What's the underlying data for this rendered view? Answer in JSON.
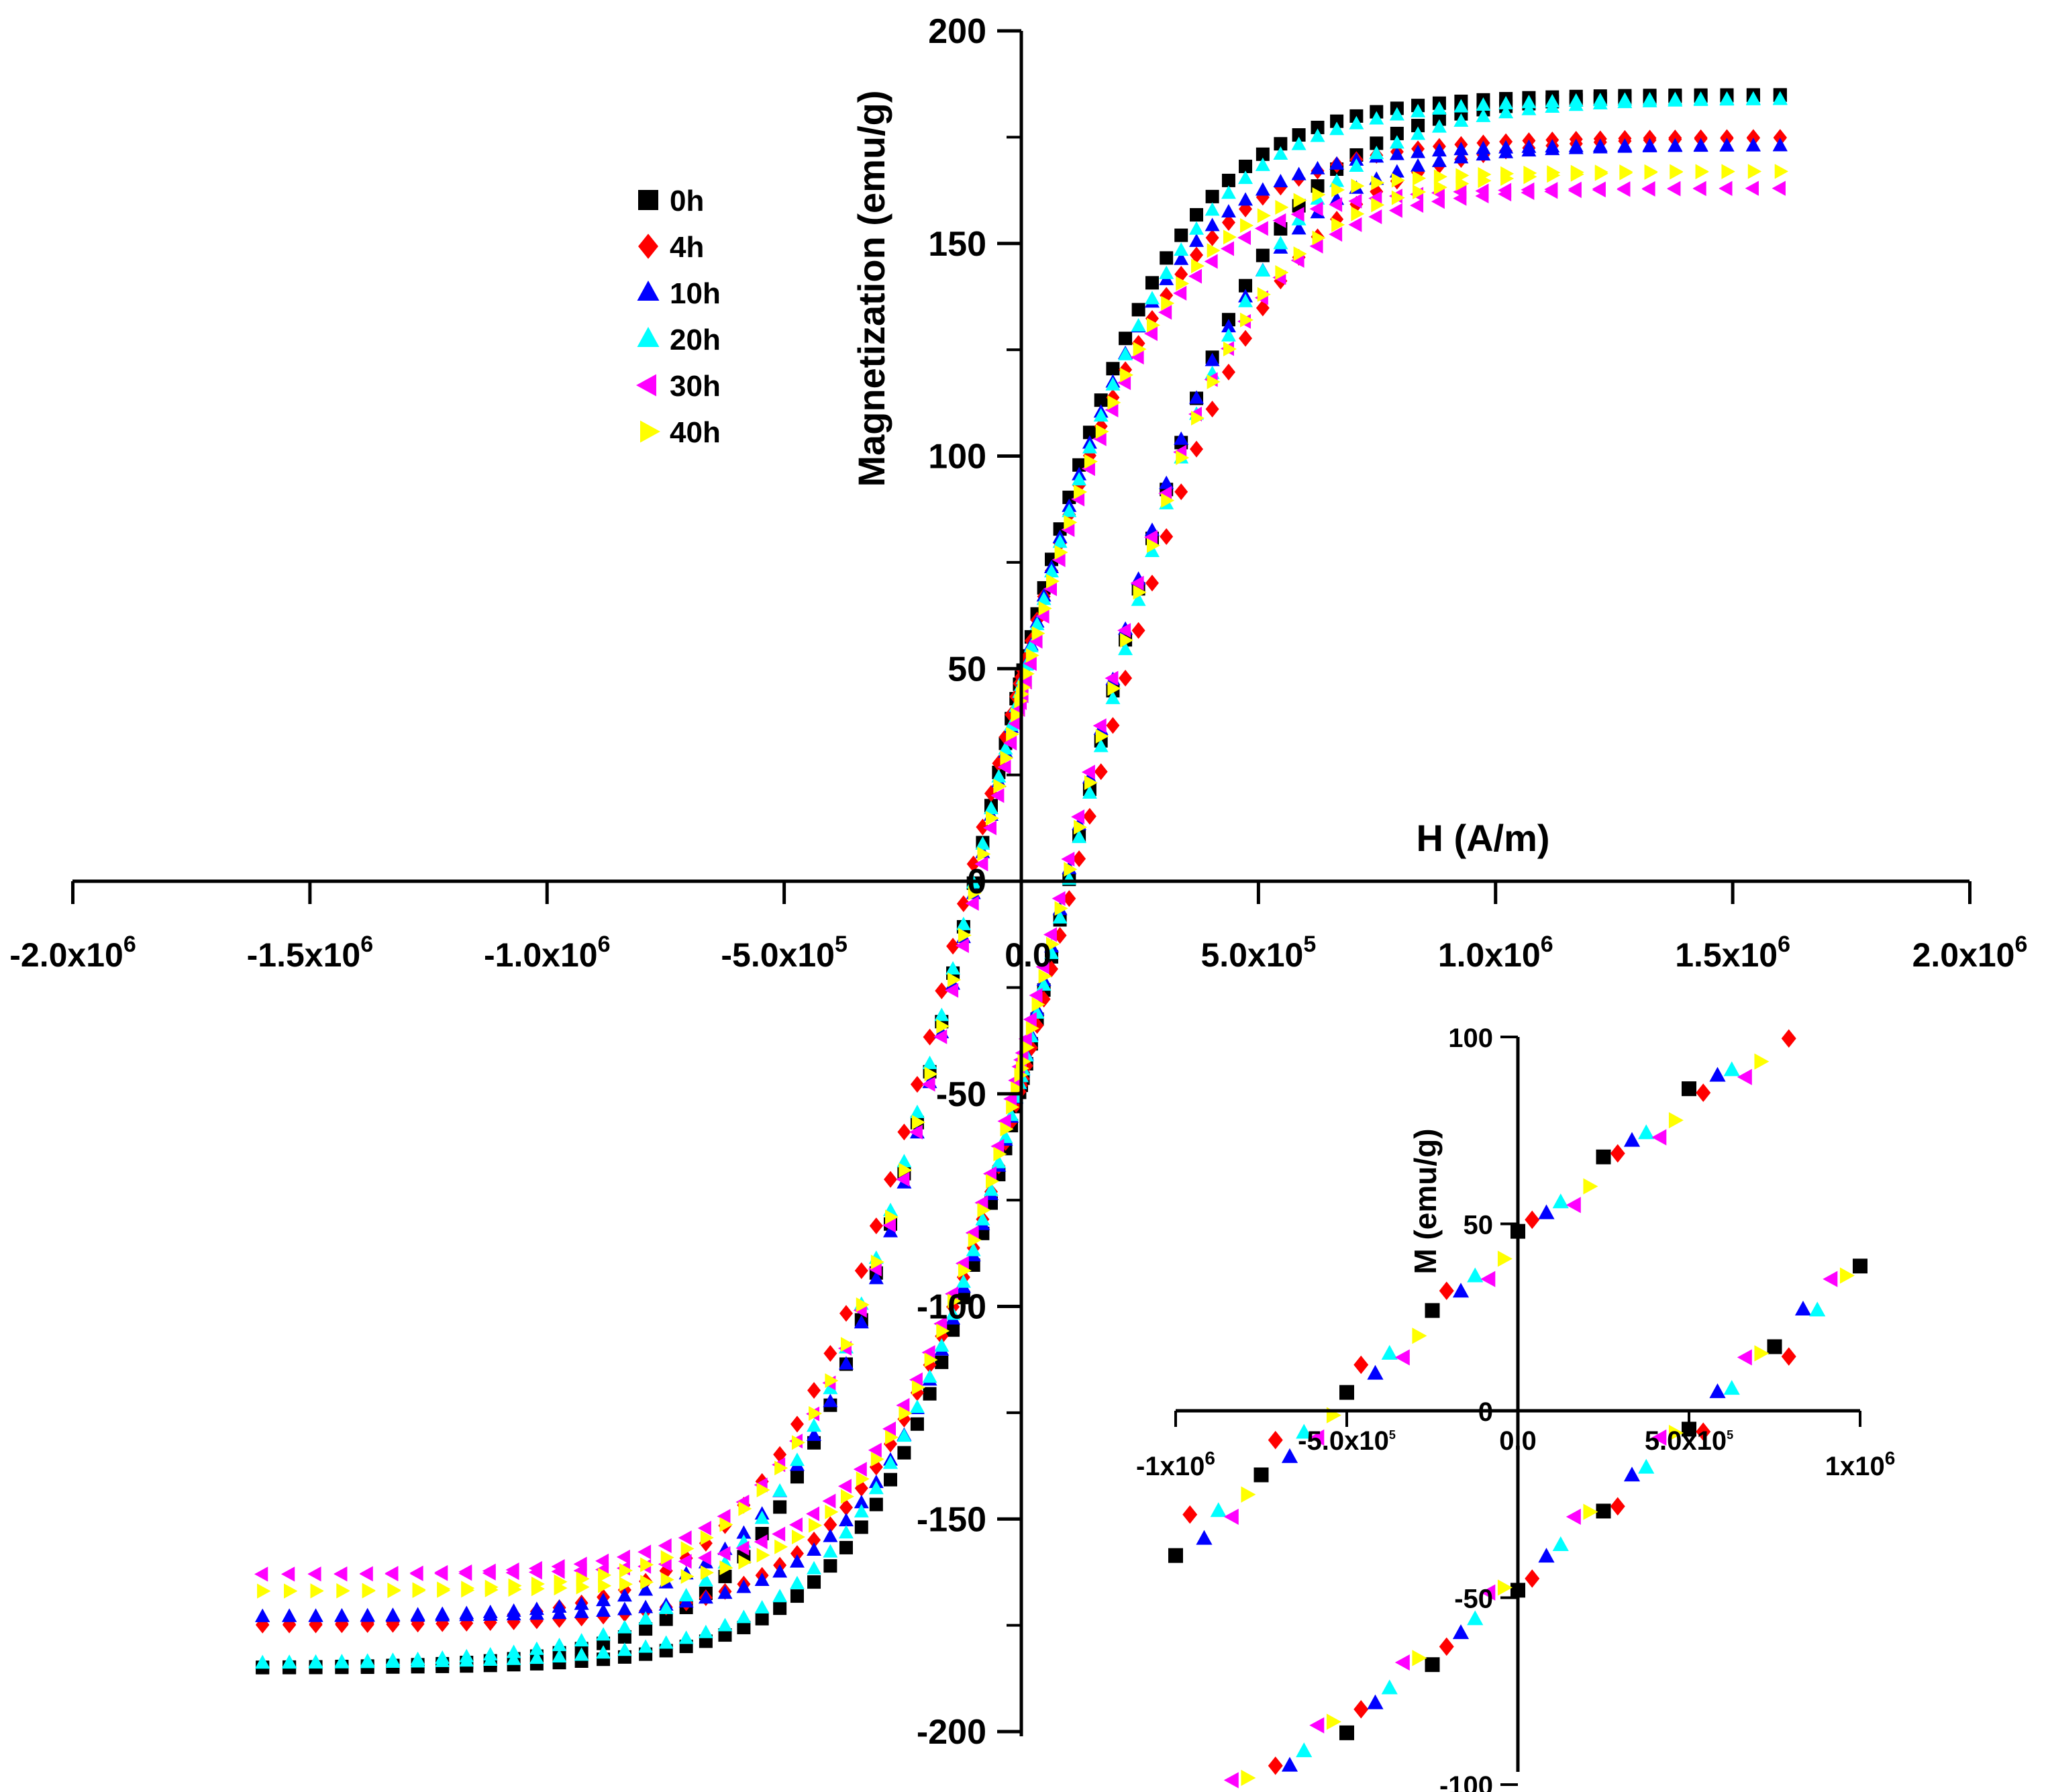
{
  "chart_data": {
    "type": "scatter",
    "title": "",
    "xlabel": "H (A/m)",
    "ylabel": "Magnetization (emu/g)",
    "xlim": [
      -2000000,
      2000000
    ],
    "ylim": [
      -200,
      200
    ],
    "x_ticks": [
      {
        "value": -2000000,
        "mant": "-2.0x10",
        "exp": "6"
      },
      {
        "value": -1500000,
        "mant": "-1.5x10",
        "exp": "6"
      },
      {
        "value": -1000000,
        "mant": "-1.0x10",
        "exp": "6"
      },
      {
        "value": -500000,
        "mant": "-5.0x10",
        "exp": "5"
      },
      {
        "value": 0,
        "mant": "0.0",
        "exp": ""
      },
      {
        "value": 500000,
        "mant": "5.0x10",
        "exp": "5"
      },
      {
        "value": 1000000,
        "mant": "1.0x10",
        "exp": "6"
      },
      {
        "value": 1500000,
        "mant": "1.5x10",
        "exp": "6"
      },
      {
        "value": 2000000,
        "mant": "2.0x10",
        "exp": "6"
      }
    ],
    "y_ticks": [
      {
        "value": 200,
        "label": "200"
      },
      {
        "value": 150,
        "label": "150"
      },
      {
        "value": 100,
        "label": "100"
      },
      {
        "value": 50,
        "label": "50"
      },
      {
        "value": 0,
        "label": "0"
      },
      {
        "value": -50,
        "label": "-50"
      },
      {
        "value": -100,
        "label": "-100"
      },
      {
        "value": -150,
        "label": "-150"
      },
      {
        "value": -200,
        "label": "-200"
      }
    ],
    "legend_position": "top-left",
    "h_max": 1600000,
    "series": [
      {
        "name": "0h",
        "marker": "square",
        "color": "#000000",
        "ms": 185,
        "mr": 48,
        "hc": 100000
      },
      {
        "name": "4h",
        "marker": "diamond",
        "color": "#ff0000",
        "ms": 175,
        "mr": 48,
        "hc": 110000
      },
      {
        "name": "10h",
        "marker": "triangle-up",
        "color": "#0000ff",
        "ms": 173,
        "mr": 46,
        "hc": 95000
      },
      {
        "name": "20h",
        "marker": "triangle-up",
        "color": "#00ffff",
        "ms": 184,
        "mr": 46,
        "hc": 100000
      },
      {
        "name": "30h",
        "marker": "triangle-left",
        "color": "#ff00ff",
        "ms": 163,
        "mr": 42,
        "hc": 90000
      },
      {
        "name": "40h",
        "marker": "triangle-right",
        "color": "#ffff00",
        "ms": 167,
        "mr": 44,
        "hc": 95000
      }
    ],
    "inset": {
      "ylabel": "M (emu/g)",
      "xlim": [
        -1000000,
        1000000
      ],
      "ylim": [
        -100,
        100
      ],
      "x_ticks": [
        {
          "value": -1000000,
          "mant": "-1x10",
          "exp": "6"
        },
        {
          "value": -500000,
          "mant": "-5.0x10",
          "exp": "5"
        },
        {
          "value": 0,
          "mant": "0.0",
          "exp": ""
        },
        {
          "value": 500000,
          "mant": "5.0x10",
          "exp": "5"
        },
        {
          "value": 1000000,
          "mant": "1x10",
          "exp": "6"
        }
      ],
      "y_ticks": [
        {
          "value": 100,
          "label": "100"
        },
        {
          "value": 50,
          "label": "50"
        },
        {
          "value": 0,
          "label": "0"
        },
        {
          "value": -50,
          "label": "-50"
        },
        {
          "value": -100,
          "label": "-100"
        }
      ]
    }
  }
}
